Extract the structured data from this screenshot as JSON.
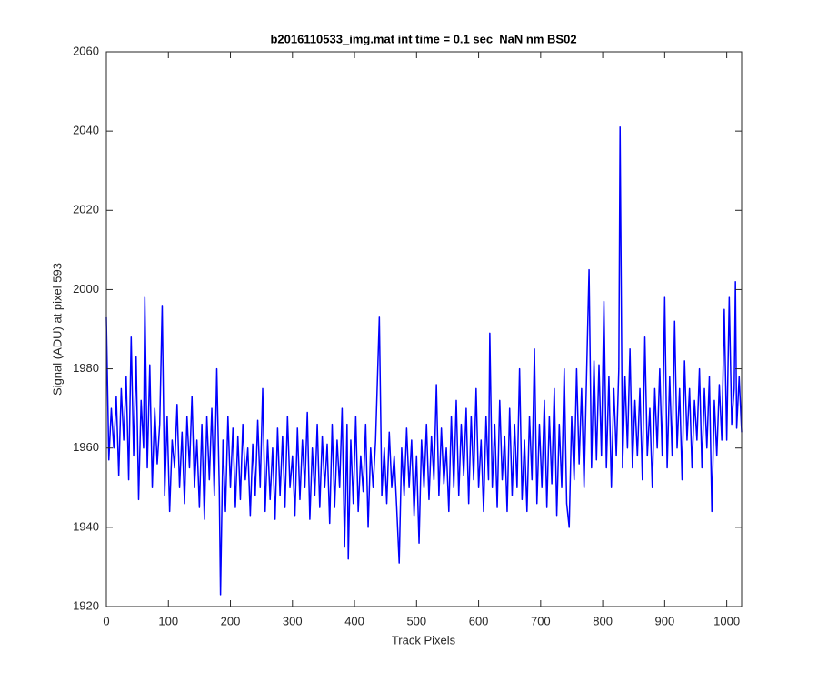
{
  "chart_data": {
    "type": "line",
    "title": "b2016110533_img.mat int time = 0.1 sec  NaN nm BS02",
    "x_label": "Track Pixels",
    "y_label": "Signal (ADU) at pixel 593",
    "xlim": [
      0,
      1024
    ],
    "ylim": [
      1920,
      2060
    ],
    "xticks": [
      0,
      100,
      200,
      300,
      400,
      500,
      600,
      700,
      800,
      900,
      1000
    ],
    "yticks": [
      1920,
      1940,
      1960,
      1980,
      2000,
      2020,
      2040,
      2060
    ],
    "grid": false,
    "series": [
      {
        "name": "signal",
        "color": "#0000ff",
        "x": [
          0,
          4,
          8,
          12,
          16,
          20,
          24,
          28,
          32,
          36,
          40,
          44,
          48,
          52,
          56,
          60,
          62,
          66,
          70,
          74,
          78,
          82,
          86,
          90,
          94,
          98,
          102,
          106,
          110,
          114,
          118,
          122,
          126,
          130,
          134,
          138,
          142,
          146,
          150,
          154,
          158,
          162,
          166,
          170,
          174,
          178,
          182,
          184,
          188,
          192,
          196,
          200,
          204,
          208,
          212,
          216,
          220,
          224,
          228,
          232,
          236,
          240,
          244,
          248,
          252,
          256,
          260,
          264,
          268,
          272,
          276,
          280,
          284,
          288,
          292,
          296,
          300,
          304,
          308,
          312,
          316,
          320,
          324,
          328,
          332,
          336,
          340,
          344,
          348,
          352,
          356,
          360,
          364,
          368,
          372,
          376,
          380,
          384,
          388,
          390,
          394,
          398,
          402,
          406,
          410,
          414,
          418,
          422,
          426,
          430,
          434,
          440,
          444,
          448,
          452,
          456,
          460,
          464,
          468,
          472,
          476,
          480,
          484,
          488,
          492,
          496,
          500,
          504,
          508,
          512,
          516,
          520,
          524,
          528,
          532,
          536,
          540,
          544,
          548,
          552,
          556,
          560,
          564,
          568,
          572,
          576,
          580,
          584,
          588,
          592,
          596,
          600,
          604,
          608,
          612,
          616,
          618,
          622,
          626,
          630,
          634,
          638,
          642,
          646,
          650,
          654,
          658,
          662,
          666,
          670,
          674,
          678,
          682,
          686,
          690,
          694,
          698,
          702,
          706,
          710,
          714,
          718,
          722,
          726,
          730,
          734,
          738,
          742,
          746,
          750,
          754,
          758,
          762,
          766,
          770,
          774,
          778,
          782,
          786,
          790,
          794,
          798,
          802,
          806,
          810,
          814,
          818,
          822,
          826,
          828,
          832,
          836,
          840,
          844,
          848,
          852,
          856,
          860,
          864,
          868,
          872,
          876,
          880,
          884,
          888,
          892,
          896,
          900,
          904,
          908,
          912,
          916,
          920,
          924,
          928,
          932,
          936,
          940,
          944,
          948,
          952,
          956,
          960,
          964,
          968,
          972,
          976,
          980,
          984,
          988,
          992,
          996,
          1000,
          1004,
          1008,
          1012,
          1014,
          1016,
          1020,
          1024
        ],
        "values": [
          1993,
          1957,
          1970,
          1960,
          1973,
          1953,
          1975,
          1962,
          1978,
          1952,
          1988,
          1958,
          1983,
          1947,
          1972,
          1960,
          1998,
          1955,
          1981,
          1950,
          1970,
          1956,
          1966,
          1996,
          1948,
          1968,
          1944,
          1962,
          1955,
          1971,
          1950,
          1964,
          1946,
          1968,
          1955,
          1973,
          1950,
          1962,
          1945,
          1966,
          1942,
          1968,
          1952,
          1970,
          1948,
          1980,
          1950,
          1923,
          1962,
          1944,
          1968,
          1950,
          1965,
          1945,
          1963,
          1947,
          1966,
          1952,
          1960,
          1943,
          1961,
          1948,
          1967,
          1950,
          1975,
          1944,
          1962,
          1947,
          1960,
          1942,
          1965,
          1948,
          1963,
          1945,
          1968,
          1950,
          1958,
          1943,
          1965,
          1947,
          1962,
          1950,
          1969,
          1942,
          1960,
          1948,
          1966,
          1945,
          1963,
          1950,
          1961,
          1941,
          1966,
          1945,
          1962,
          1950,
          1970,
          1935,
          1966,
          1932,
          1962,
          1946,
          1968,
          1944,
          1958,
          1949,
          1966,
          1940,
          1960,
          1950,
          1962,
          1993,
          1948,
          1960,
          1946,
          1964,
          1950,
          1958,
          1945,
          1931,
          1960,
          1948,
          1965,
          1950,
          1962,
          1943,
          1958,
          1936,
          1962,
          1950,
          1966,
          1947,
          1963,
          1952,
          1976,
          1948,
          1965,
          1951,
          1960,
          1944,
          1968,
          1950,
          1972,
          1948,
          1966,
          1953,
          1970,
          1946,
          1968,
          1952,
          1975,
          1950,
          1962,
          1944,
          1968,
          1952,
          1989,
          1950,
          1966,
          1945,
          1972,
          1952,
          1963,
          1944,
          1970,
          1948,
          1966,
          1950,
          1980,
          1947,
          1962,
          1944,
          1968,
          1952,
          1985,
          1946,
          1966,
          1950,
          1972,
          1945,
          1968,
          1951,
          1975,
          1943,
          1966,
          1950,
          1980,
          1946,
          1940,
          1968,
          1952,
          1980,
          1956,
          1975,
          1950,
          1978,
          2005,
          1955,
          1982,
          1957,
          1981,
          1958,
          1997,
          1955,
          1978,
          1950,
          1975,
          1958,
          1980,
          2041,
          1955,
          1978,
          1960,
          1985,
          1955,
          1972,
          1958,
          1975,
          1952,
          1988,
          1958,
          1970,
          1950,
          1975,
          1960,
          1980,
          1958,
          1998,
          1955,
          1978,
          1958,
          1992,
          1960,
          1975,
          1952,
          1982,
          1962,
          1975,
          1955,
          1972,
          1962,
          1980,
          1955,
          1975,
          1960,
          1978,
          1944,
          1972,
          1958,
          1976,
          1962,
          1995,
          1962,
          1998,
          1966,
          1975,
          2002,
          1965,
          1978,
          1964
        ]
      }
    ]
  }
}
